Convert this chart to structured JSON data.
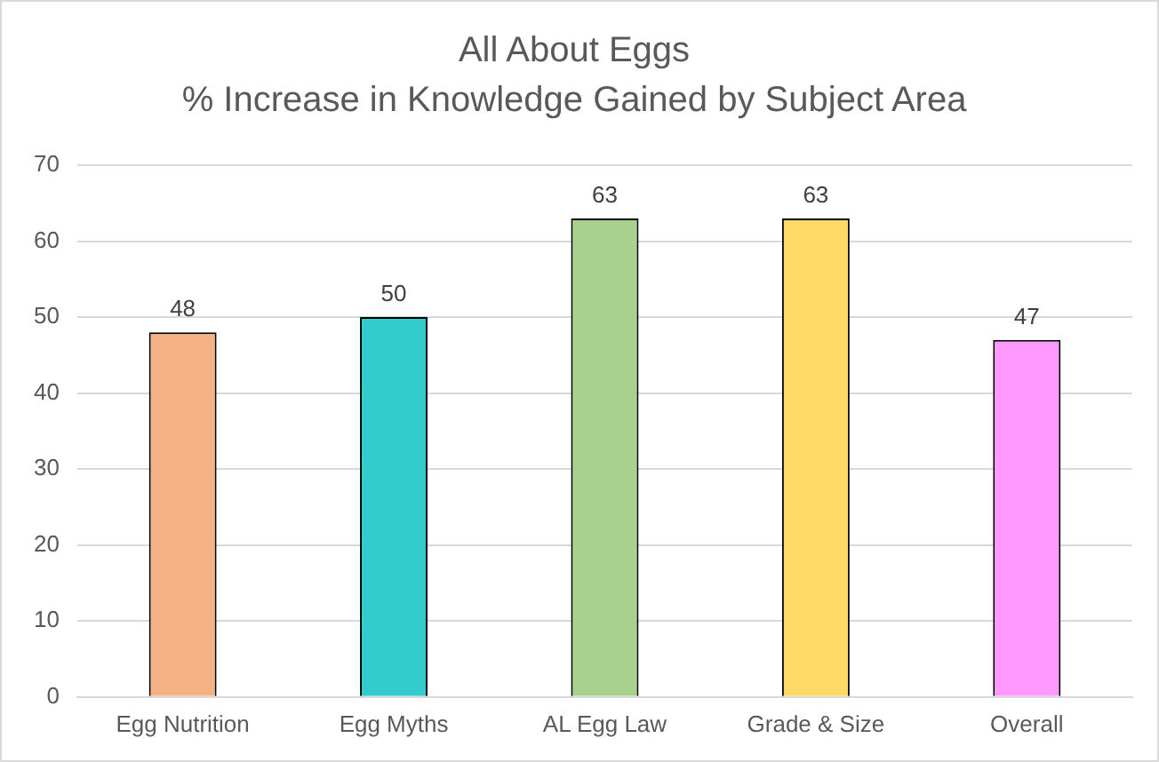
{
  "chart_data": {
    "type": "bar",
    "title": "All About Eggs",
    "subtitle": "% Increase in Knowledge Gained by Subject Area",
    "categories": [
      "Egg Nutrition",
      "Egg Myths",
      "AL Egg Law",
      "Grade & Size",
      "Overall"
    ],
    "values": [
      48,
      50,
      63,
      63,
      47
    ],
    "colors": [
      "#f4b183",
      "#33cccc",
      "#a9d18e",
      "#ffd966",
      "#ff99ff"
    ],
    "ylim": [
      0,
      70
    ],
    "yticks": [
      0,
      10,
      20,
      30,
      40,
      50,
      60,
      70
    ],
    "grid": "y",
    "data_labels": true
  }
}
